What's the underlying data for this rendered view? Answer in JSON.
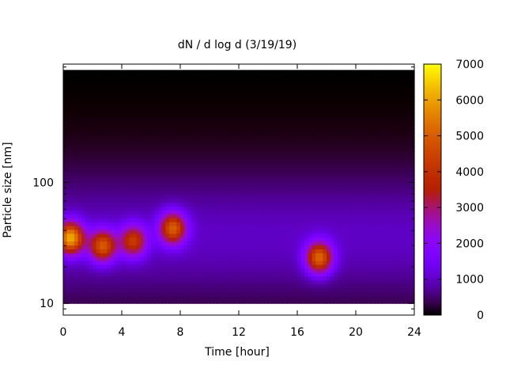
{
  "chart_data": {
    "type": "heatmap",
    "title": "dN / d log d (3/19/19)",
    "xlabel": "Time [hour]",
    "ylabel": "Particle size [nm]",
    "xlim": [
      0,
      24
    ],
    "xticks": [
      0,
      4,
      8,
      12,
      16,
      20,
      24
    ],
    "y_scale": "log",
    "ylim": [
      8,
      950
    ],
    "yticks": [
      10,
      100
    ],
    "colorbar": {
      "min": 0,
      "max": 7000,
      "ticks": [
        0,
        1000,
        2000,
        3000,
        4000,
        5000,
        6000,
        7000
      ],
      "palette": "gnuplot black-purple-red-yellow"
    },
    "size_range_nm": [
      10,
      850
    ],
    "background_level": 700,
    "hotspots": [
      {
        "time_h": 0.5,
        "size_nm": 35,
        "value": 5200
      },
      {
        "time_h": 2.7,
        "size_nm": 30,
        "value": 4000
      },
      {
        "time_h": 4.8,
        "size_nm": 33,
        "value": 3300
      },
      {
        "time_h": 7.5,
        "size_nm": 42,
        "value": 4100
      },
      {
        "time_h": 17.5,
        "size_nm": 24,
        "value": 4300
      }
    ]
  }
}
